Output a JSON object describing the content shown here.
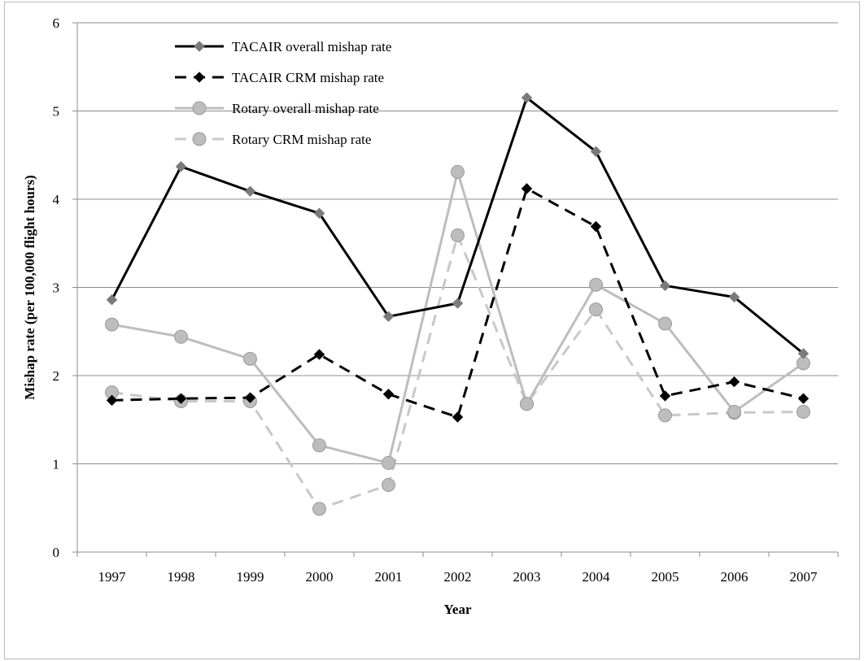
{
  "chart_data": {
    "type": "line",
    "title": "",
    "xlabel": "Year",
    "ylabel": "Mishap rate (per 100,000 flight hours)",
    "ylim": [
      0,
      6
    ],
    "yticks": [
      0,
      1,
      2,
      3,
      4,
      5,
      6
    ],
    "grid": "horizontal",
    "legend_position": "top-left",
    "categories": [
      "1997",
      "1998",
      "1999",
      "2000",
      "2001",
      "2002",
      "2003",
      "2004",
      "2005",
      "2006",
      "2007"
    ],
    "series": [
      {
        "name": "TACAIR overall mishap rate",
        "values": [
          2.86,
          4.37,
          4.09,
          3.84,
          2.67,
          2.82,
          5.15,
          4.54,
          3.02,
          2.89,
          2.25
        ],
        "color": "#000000",
        "marker_color": "#7a7a7a",
        "dash": "solid",
        "marker": "diamond"
      },
      {
        "name": "TACAIR CRM mishap rate",
        "values": [
          1.72,
          1.74,
          1.75,
          2.24,
          1.79,
          1.53,
          4.12,
          3.69,
          1.77,
          1.93,
          1.74
        ],
        "color": "#000000",
        "marker_color": "#000000",
        "dash": "dashed",
        "marker": "diamond"
      },
      {
        "name": "Rotary overall mishap rate",
        "values": [
          2.58,
          2.44,
          2.19,
          1.21,
          1.01,
          4.31,
          1.68,
          3.03,
          2.59,
          1.59,
          2.14
        ],
        "color": "#bdbdbd",
        "marker_color": "#bdbdbd",
        "dash": "solid",
        "marker": "circle"
      },
      {
        "name": "Rotary CRM mishap rate",
        "values": [
          1.81,
          1.71,
          1.71,
          0.49,
          0.76,
          3.59,
          1.68,
          2.75,
          1.55,
          1.58,
          1.59
        ],
        "color": "#c8c8c8",
        "marker_color": "#bdbdbd",
        "dash": "dashed",
        "marker": "circle"
      }
    ]
  }
}
